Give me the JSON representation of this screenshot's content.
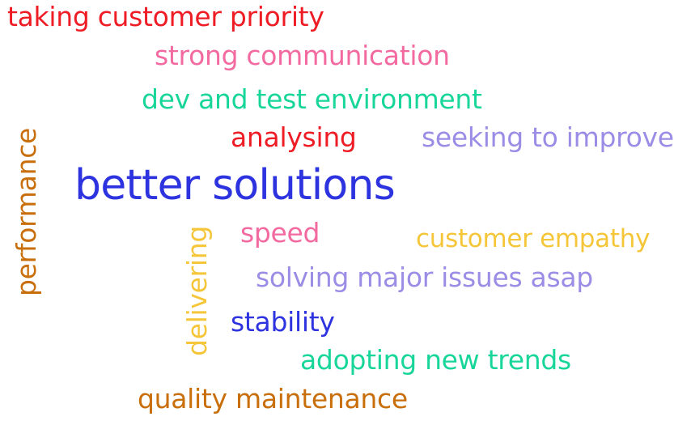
{
  "colors": {
    "red": "#ee1c25",
    "pink": "#f26aa0",
    "green": "#18d69a",
    "lavender": "#9b8ce6",
    "blue": "#2e33e0",
    "yellow": "#f5c63a",
    "brown": "#c86e0a"
  },
  "words": [
    {
      "text": "taking customer priority",
      "color": "#ee1c25"
    },
    {
      "text": "strong communication",
      "color": "#f26aa0"
    },
    {
      "text": "dev and test environment",
      "color": "#18d69a"
    },
    {
      "text": "analysing",
      "color": "#ee1c25"
    },
    {
      "text": "seeking to improve",
      "color": "#9b8ce6"
    },
    {
      "text": "better solutions",
      "color": "#2e33e0"
    },
    {
      "text": "speed",
      "color": "#f26aa0"
    },
    {
      "text": "customer empathy",
      "color": "#f5c63a"
    },
    {
      "text": "solving major issues asap",
      "color": "#9b8ce6"
    },
    {
      "text": "stability",
      "color": "#2e33e0"
    },
    {
      "text": "adopting new trends",
      "color": "#18d69a"
    },
    {
      "text": "quality maintenance",
      "color": "#c86e0a"
    },
    {
      "text": "performance",
      "color": "#c86e0a"
    },
    {
      "text": "delivering",
      "color": "#f5c63a"
    }
  ]
}
